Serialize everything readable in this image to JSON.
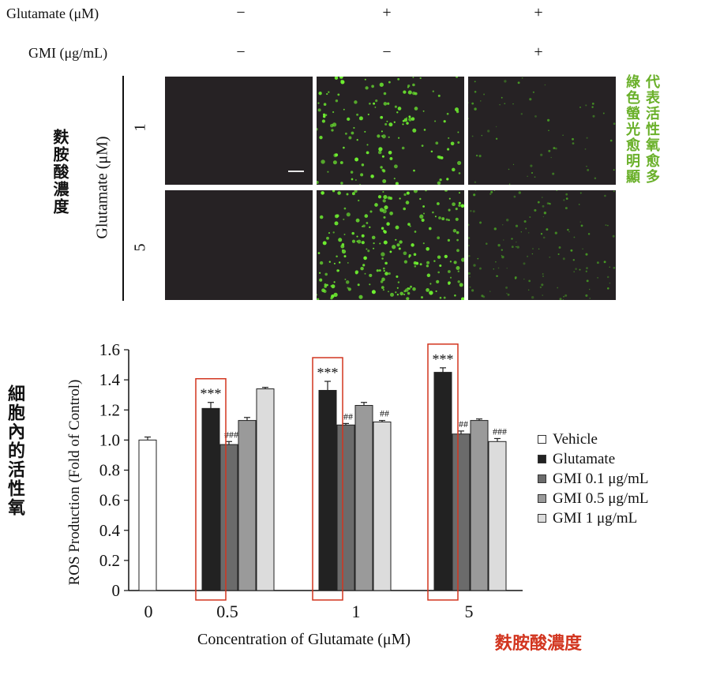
{
  "header": {
    "row1_label": "Glutamate (μM)",
    "row2_label": "GMI (μg/mL)",
    "row1_signs": [
      "−",
      "+",
      "+"
    ],
    "row2_signs": [
      "−",
      "−",
      "+"
    ]
  },
  "micrograph": {
    "axis_label": "Glutamate (μM)",
    "row_labels": [
      "1",
      "5"
    ],
    "left_cjk": "麩胺酸濃度",
    "right_cjk_col1": "代表活性氧愈多",
    "right_cjk_col2": "綠色螢光愈明顯",
    "colors": {
      "panel_bg": "#262224",
      "dot": "#5fe02a",
      "cjk_left": "#e8951c",
      "cjk_right": "#6ab02a"
    }
  },
  "chart_data": {
    "type": "bar",
    "ylabel": "ROS Production (Fold of Control)",
    "xlabel": "Concentration of Glutamate (μM)",
    "xlabel_cjk": "麩胺酸濃度",
    "ylabel_cjk": "細胞內的活性氧",
    "ylim": [
      0,
      1.6
    ],
    "yticks": [
      "0",
      "0.2",
      "0.4",
      "0.6",
      "0.8",
      "1.0",
      "1.2",
      "1.4",
      "1.6"
    ],
    "categories": [
      "0",
      "0.5",
      "1",
      "5"
    ],
    "series": [
      {
        "name": "Vehicle",
        "color": "#ffffff",
        "values": [
          1.0,
          null,
          null,
          null
        ]
      },
      {
        "name": "Glutamate",
        "color": "#222222",
        "values": [
          null,
          1.21,
          1.33,
          1.45
        ]
      },
      {
        "name": "GMI 0.1 μg/mL",
        "color": "#6b6b6b",
        "values": [
          null,
          0.97,
          1.1,
          1.04
        ]
      },
      {
        "name": "GMI 0.5 μg/mL",
        "color": "#9a9a9a",
        "values": [
          null,
          1.13,
          1.23,
          1.13
        ]
      },
      {
        "name": "GMI 1 μg/mL",
        "color": "#dcdcdc",
        "values": [
          null,
          1.34,
          1.12,
          0.99
        ]
      }
    ],
    "errors": [
      [
        0.02,
        null,
        null,
        null
      ],
      [
        null,
        0.04,
        0.06,
        0.03
      ],
      [
        null,
        0.02,
        0.01,
        0.02
      ],
      [
        null,
        0.02,
        0.02,
        0.01
      ],
      [
        null,
        0.01,
        0.01,
        0.02
      ]
    ],
    "annotations": [
      {
        "group": 1,
        "series": 1,
        "text": "***"
      },
      {
        "group": 1,
        "series": 2,
        "text": "###"
      },
      {
        "group": 2,
        "series": 1,
        "text": "***"
      },
      {
        "group": 2,
        "series": 2,
        "text": "##"
      },
      {
        "group": 2,
        "series": 4,
        "text": "##"
      },
      {
        "group": 3,
        "series": 1,
        "text": "***"
      },
      {
        "group": 3,
        "series": 2,
        "text": "##"
      },
      {
        "group": 3,
        "series": 4,
        "text": "###"
      }
    ],
    "highlight_color": "#d2351f"
  }
}
